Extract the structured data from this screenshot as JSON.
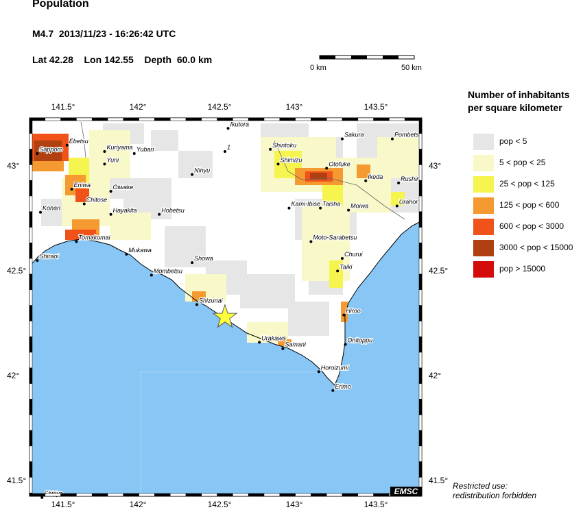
{
  "header": {
    "title": "Population",
    "event_line": "M4.7  2013/11/23 - 16:26:42 UTC",
    "location_line": "Lat 42.28    Lon 142.55    Depth  60.0 km"
  },
  "scale_bar": {
    "left_label": "0 km",
    "right_label": "50 km"
  },
  "legend": {
    "title_line1": "Number of inhabitants",
    "title_line2": "per square kilometer",
    "items": [
      {
        "label": "pop < 5",
        "color": "#e6e6e6"
      },
      {
        "label": "5 < pop < 25",
        "color": "#f8f8c8"
      },
      {
        "label": "25 < pop < 125",
        "color": "#f6f550"
      },
      {
        "label": "125 < pop < 600",
        "color": "#f49a30"
      },
      {
        "label": "600 < pop < 3000",
        "color": "#f0521a"
      },
      {
        "label": "3000 < pop < 15000",
        "color": "#b04010"
      },
      {
        "label": "pop > 15000",
        "color": "#d40c0c"
      }
    ]
  },
  "map": {
    "top_ticks": [
      "141.5°",
      "142°",
      "142.5°",
      "143°",
      "143.5°"
    ],
    "bottom_ticks": [
      "141.5°",
      "142°",
      "142.5°",
      "143°",
      "143.5°"
    ],
    "left_ticks": [
      "43°",
      "42.5°",
      "42°",
      "41.5°"
    ],
    "right_ticks": [
      "43°",
      "42.5°",
      "42°",
      "41.5°"
    ],
    "ocean_color": "#87c6f5",
    "land_color": "#ffffff",
    "epicenter": {
      "lat": 42.28,
      "lon": 142.55,
      "color": "#ffff3c"
    },
    "places": [
      {
        "name": "Sapporo",
        "lon": 141.35,
        "lat": 43.06
      },
      {
        "name": "Ebetsu",
        "lon": 141.54,
        "lat": 43.1
      },
      {
        "name": "Kuriyama",
        "lon": 141.78,
        "lat": 43.07
      },
      {
        "name": "Yubari",
        "lon": 141.97,
        "lat": 43.06
      },
      {
        "name": "Yuni",
        "lon": 141.78,
        "lat": 43.01
      },
      {
        "name": "Eniwa",
        "lon": 141.57,
        "lat": 42.89
      },
      {
        "name": "Chitose",
        "lon": 141.65,
        "lat": 42.82
      },
      {
        "name": "Oiwake",
        "lon": 141.82,
        "lat": 42.88
      },
      {
        "name": "Hayakita",
        "lon": 141.82,
        "lat": 42.77
      },
      {
        "name": "Kohan",
        "lon": 141.37,
        "lat": 42.78
      },
      {
        "name": "Hobetsu",
        "lon": 142.13,
        "lat": 42.77
      },
      {
        "name": "Tomakomai",
        "lon": 141.6,
        "lat": 42.64
      },
      {
        "name": "Shiraoi",
        "lon": 141.35,
        "lat": 42.55
      },
      {
        "name": "Mukawa",
        "lon": 141.92,
        "lat": 42.58
      },
      {
        "name": "Mombetsu",
        "lon": 142.08,
        "lat": 42.48
      },
      {
        "name": "Showa",
        "lon": 142.34,
        "lat": 42.54
      },
      {
        "name": "Ninyu",
        "lon": 142.34,
        "lat": 42.96
      },
      {
        "name": "Ikutora",
        "lon": 142.57,
        "lat": 43.18
      },
      {
        "name": "1",
        "lon": 142.55,
        "lat": 43.07
      },
      {
        "name": "Shintoku",
        "lon": 142.84,
        "lat": 43.08
      },
      {
        "name": "Shimizu",
        "lon": 142.89,
        "lat": 43.01
      },
      {
        "name": "Sakura",
        "lon": 143.3,
        "lat": 43.13
      },
      {
        "name": "Pombets",
        "lon": 143.62,
        "lat": 43.13
      },
      {
        "name": "Otofuke",
        "lon": 143.2,
        "lat": 42.99
      },
      {
        "name": "Ikeda",
        "lon": 143.45,
        "lat": 42.93
      },
      {
        "name": "Rushir",
        "lon": 143.66,
        "lat": 42.92
      },
      {
        "name": "Kami-Ibise",
        "lon": 142.96,
        "lat": 42.8
      },
      {
        "name": "Taisha",
        "lon": 143.16,
        "lat": 42.8
      },
      {
        "name": "Moiwa",
        "lon": 143.34,
        "lat": 42.79
      },
      {
        "name": "Urahor",
        "lon": 143.65,
        "lat": 42.81
      },
      {
        "name": "Moto-Sarabetsu",
        "lon": 143.1,
        "lat": 42.64
      },
      {
        "name": "Churui",
        "lon": 143.3,
        "lat": 42.56
      },
      {
        "name": "Taiki",
        "lon": 143.27,
        "lat": 42.5
      },
      {
        "name": "Shizunai",
        "lon": 142.37,
        "lat": 42.34
      },
      {
        "name": "Hiroo",
        "lon": 143.31,
        "lat": 42.29
      },
      {
        "name": "Urakawa",
        "lon": 142.77,
        "lat": 42.16
      },
      {
        "name": "Samani",
        "lon": 142.92,
        "lat": 42.13
      },
      {
        "name": "Onitoppu",
        "lon": 143.32,
        "lat": 42.15
      },
      {
        "name": "Horoizumi",
        "lon": 143.15,
        "lat": 42.02
      },
      {
        "name": "Erimo",
        "lon": 143.24,
        "lat": 41.93
      },
      {
        "name": "Shiriya",
        "lon": 141.38,
        "lat": 41.42
      }
    ]
  },
  "badge": "EMSC",
  "restricted": {
    "line1": "Restricted use:",
    "line2": "redistribution forbidden"
  }
}
